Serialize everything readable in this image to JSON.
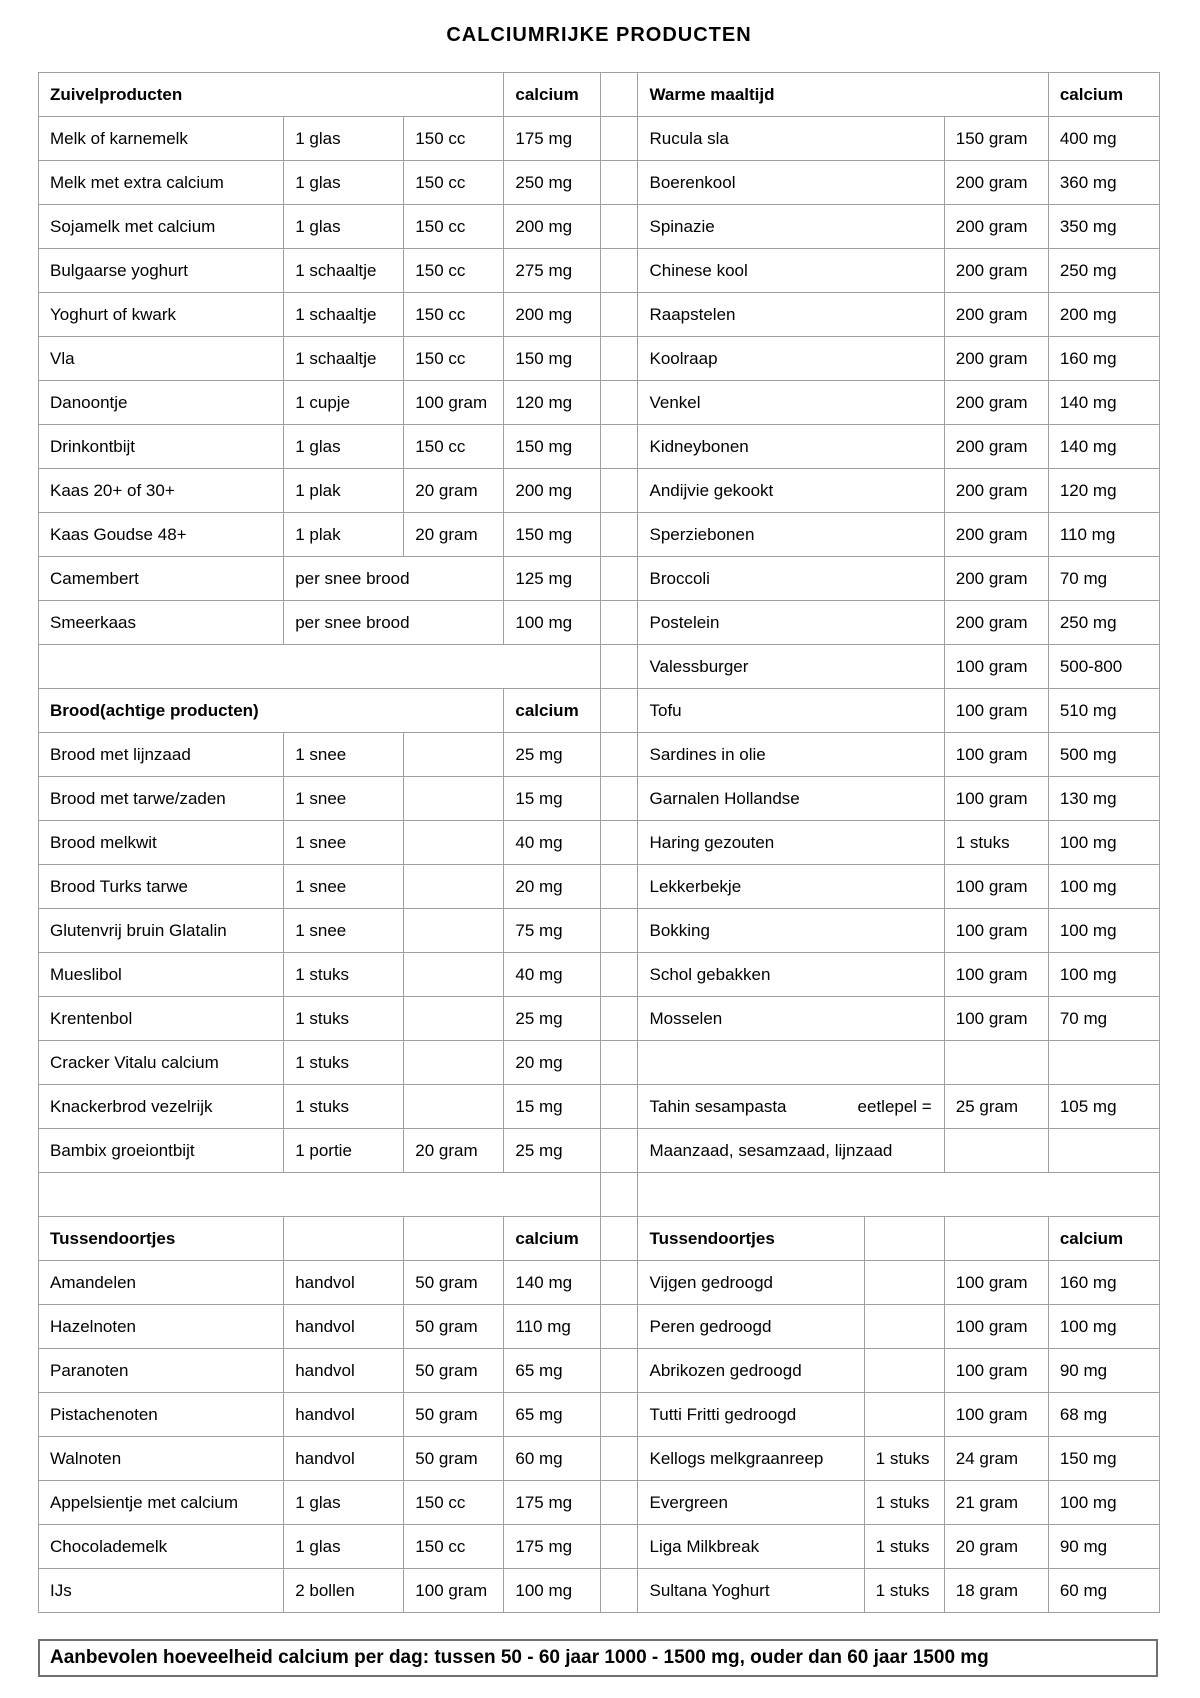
{
  "title": "CALCIUMRIJKE PRODUCTEN",
  "banner": "Aanbevolen hoeveelheid calcium per dag: tussen 50 - 60 jaar 1000 - 1500 mg, ouder dan 60 jaar 1500 mg",
  "table": {
    "rows": [
      [
        {
          "t": "Zuivelproducten",
          "b": 1,
          "s": 3
        },
        {
          "t": "calcium",
          "b": 1
        },
        {
          "sp": 1
        },
        {
          "t": "Warme maaltijd",
          "b": 1,
          "s": 3
        },
        {
          "t": "calcium",
          "b": 1
        }
      ],
      [
        {
          "t": "Melk of karnemelk"
        },
        {
          "t": "1 glas"
        },
        {
          "t": "150 cc"
        },
        {
          "t": "175 mg"
        },
        {
          "sp": 1
        },
        {
          "t": "Rucula sla",
          "s": 2
        },
        {
          "t": "150 gram"
        },
        {
          "t": "400 mg"
        }
      ],
      [
        {
          "t": "Melk met extra calcium"
        },
        {
          "t": "1 glas"
        },
        {
          "t": "150 cc"
        },
        {
          "t": "250 mg"
        },
        {
          "sp": 1
        },
        {
          "t": "Boerenkool",
          "s": 2
        },
        {
          "t": "200 gram"
        },
        {
          "t": "360 mg"
        }
      ],
      [
        {
          "t": "Sojamelk met calcium"
        },
        {
          "t": "1 glas"
        },
        {
          "t": "150 cc"
        },
        {
          "t": "200 mg"
        },
        {
          "sp": 1
        },
        {
          "t": "Spinazie",
          "s": 2
        },
        {
          "t": "200 gram"
        },
        {
          "t": "350 mg"
        }
      ],
      [
        {
          "t": "Bulgaarse yoghurt"
        },
        {
          "t": "1 schaaltje"
        },
        {
          "t": "150 cc"
        },
        {
          "t": "275 mg"
        },
        {
          "sp": 1
        },
        {
          "t": "Chinese kool",
          "s": 2
        },
        {
          "t": "200 gram"
        },
        {
          "t": "250 mg"
        }
      ],
      [
        {
          "t": "Yoghurt of kwark"
        },
        {
          "t": "1 schaaltje"
        },
        {
          "t": "150 cc"
        },
        {
          "t": "200 mg"
        },
        {
          "sp": 1
        },
        {
          "t": "Raapstelen",
          "s": 2
        },
        {
          "t": "200 gram"
        },
        {
          "t": "200 mg"
        }
      ],
      [
        {
          "t": "Vla"
        },
        {
          "t": "1 schaaltje"
        },
        {
          "t": "150 cc"
        },
        {
          "t": "150 mg"
        },
        {
          "sp": 1
        },
        {
          "t": "Koolraap",
          "s": 2
        },
        {
          "t": "200 gram"
        },
        {
          "t": "160 mg"
        }
      ],
      [
        {
          "t": "Danoontje"
        },
        {
          "t": "1 cupje"
        },
        {
          "t": "100 gram"
        },
        {
          "t": "120 mg"
        },
        {
          "sp": 1
        },
        {
          "t": "Venkel",
          "s": 2
        },
        {
          "t": "200 gram"
        },
        {
          "t": "140 mg"
        }
      ],
      [
        {
          "t": "Drinkontbijt"
        },
        {
          "t": "1 glas"
        },
        {
          "t": "150 cc"
        },
        {
          "t": "150 mg"
        },
        {
          "sp": 1
        },
        {
          "t": "Kidneybonen",
          "s": 2
        },
        {
          "t": "200 gram"
        },
        {
          "t": "140 mg"
        }
      ],
      [
        {
          "t": "Kaas 20+ of 30+"
        },
        {
          "t": "1 plak"
        },
        {
          "t": "20 gram"
        },
        {
          "t": "200 mg"
        },
        {
          "sp": 1
        },
        {
          "t": "Andijvie gekookt",
          "s": 2
        },
        {
          "t": "200 gram"
        },
        {
          "t": "120 mg"
        }
      ],
      [
        {
          "t": "Kaas Goudse 48+"
        },
        {
          "t": "1 plak"
        },
        {
          "t": "20 gram"
        },
        {
          "t": "150 mg"
        },
        {
          "sp": 1
        },
        {
          "t": "Sperziebonen",
          "s": 2
        },
        {
          "t": "200 gram"
        },
        {
          "t": "110 mg"
        }
      ],
      [
        {
          "t": "Camembert"
        },
        {
          "t": "per snee brood",
          "s": 2
        },
        {
          "t": "125 mg"
        },
        {
          "sp": 1
        },
        {
          "t": "Broccoli",
          "s": 2
        },
        {
          "t": "200 gram"
        },
        {
          "t": "70 mg"
        }
      ],
      [
        {
          "t": "Smeerkaas"
        },
        {
          "t": "per snee brood",
          "s": 2
        },
        {
          "t": "100 mg"
        },
        {
          "sp": 1
        },
        {
          "t": "Postelein",
          "s": 2
        },
        {
          "t": "200 gram"
        },
        {
          "t": "250 mg"
        }
      ],
      [
        {
          "gap": 1,
          "s": 4
        },
        {
          "sp": 1
        },
        {
          "t": "Valessburger",
          "s": 2
        },
        {
          "t": "100 gram"
        },
        {
          "t": "500-800"
        }
      ],
      [
        {
          "t": "Brood(achtige producten)",
          "b": 1,
          "s": 3
        },
        {
          "t": "calcium",
          "b": 1
        },
        {
          "sp": 1
        },
        {
          "t": "Tofu",
          "s": 2
        },
        {
          "t": "100 gram"
        },
        {
          "t": "510 mg"
        }
      ],
      [
        {
          "t": "Brood met lijnzaad"
        },
        {
          "t": "1 snee"
        },
        {
          "t": ""
        },
        {
          "t": "25 mg"
        },
        {
          "sp": 1
        },
        {
          "t": "Sardines in olie",
          "s": 2
        },
        {
          "t": "100 gram"
        },
        {
          "t": "500 mg"
        }
      ],
      [
        {
          "t": "Brood met tarwe/zaden"
        },
        {
          "t": "1 snee"
        },
        {
          "t": ""
        },
        {
          "t": "15 mg"
        },
        {
          "sp": 1
        },
        {
          "t": "Garnalen Hollandse",
          "s": 2
        },
        {
          "t": "100 gram"
        },
        {
          "t": "130 mg"
        }
      ],
      [
        {
          "t": "Brood melkwit"
        },
        {
          "t": "1 snee"
        },
        {
          "t": ""
        },
        {
          "t": "40 mg"
        },
        {
          "sp": 1
        },
        {
          "t": "Haring gezouten",
          "s": 2
        },
        {
          "t": "1 stuks"
        },
        {
          "t": "100 mg"
        }
      ],
      [
        {
          "t": "Brood Turks tarwe"
        },
        {
          "t": "1 snee"
        },
        {
          "t": ""
        },
        {
          "t": "20 mg"
        },
        {
          "sp": 1
        },
        {
          "t": "Lekkerbekje",
          "s": 2
        },
        {
          "t": "100 gram"
        },
        {
          "t": "100 mg"
        }
      ],
      [
        {
          "t": "Glutenvrij bruin Glatalin"
        },
        {
          "t": "1 snee"
        },
        {
          "t": ""
        },
        {
          "t": "75 mg"
        },
        {
          "sp": 1
        },
        {
          "t": "Bokking",
          "s": 2
        },
        {
          "t": "100 gram"
        },
        {
          "t": "100 mg"
        }
      ],
      [
        {
          "t": "Mueslibol"
        },
        {
          "t": "1 stuks"
        },
        {
          "t": ""
        },
        {
          "t": "40 mg"
        },
        {
          "sp": 1
        },
        {
          "t": "Schol gebakken",
          "s": 2
        },
        {
          "t": "100 gram"
        },
        {
          "t": "100 mg"
        }
      ],
      [
        {
          "t": "Krentenbol"
        },
        {
          "t": "1 stuks"
        },
        {
          "t": ""
        },
        {
          "t": "25 mg"
        },
        {
          "sp": 1
        },
        {
          "t": "Mosselen",
          "s": 2
        },
        {
          "t": "100 gram"
        },
        {
          "t": "70 mg"
        }
      ],
      [
        {
          "t": "Cracker Vitalu calcium"
        },
        {
          "t": "1 stuks"
        },
        {
          "t": ""
        },
        {
          "t": "20 mg"
        },
        {
          "sp": 1
        },
        {
          "t": "",
          "s": 2
        },
        {
          "t": ""
        },
        {
          "t": ""
        }
      ],
      [
        {
          "t": "Knackerbrod vezelrijk"
        },
        {
          "t": "1 stuks"
        },
        {
          "t": ""
        },
        {
          "t": "15 mg"
        },
        {
          "sp": 1
        },
        {
          "t": "Tahin sesampasta",
          "t2": "eetlepel =",
          "s": 2
        },
        {
          "t": "25 gram"
        },
        {
          "t": "105 mg"
        }
      ],
      [
        {
          "t": "Bambix groeiontbijt"
        },
        {
          "t": "1 portie"
        },
        {
          "t": "20 gram"
        },
        {
          "t": "25 mg"
        },
        {
          "sp": 1
        },
        {
          "t": "Maanzaad, sesamzaad, lijnzaad",
          "s": 2
        },
        {
          "t": ""
        },
        {
          "t": ""
        }
      ],
      [
        {
          "gap": 1,
          "s": 4
        },
        {
          "sp": 1,
          "gap": 1
        },
        {
          "gap": 1,
          "s": 4
        }
      ],
      [
        {
          "t": "Tussendoortjes",
          "b": 1
        },
        {
          "t": ""
        },
        {
          "t": ""
        },
        {
          "t": "calcium",
          "b": 1
        },
        {
          "sp": 1
        },
        {
          "t": "Tussendoortjes",
          "b": 1
        },
        {
          "t": ""
        },
        {
          "t": ""
        },
        {
          "t": "calcium",
          "b": 1
        }
      ],
      [
        {
          "t": "Amandelen"
        },
        {
          "t": "handvol"
        },
        {
          "t": "50 gram"
        },
        {
          "t": "140 mg"
        },
        {
          "sp": 1
        },
        {
          "t": "Vijgen gedroogd"
        },
        {
          "t": ""
        },
        {
          "t": "100 gram"
        },
        {
          "t": "160 mg"
        }
      ],
      [
        {
          "t": "Hazelnoten"
        },
        {
          "t": "handvol"
        },
        {
          "t": "50 gram"
        },
        {
          "t": "110 mg"
        },
        {
          "sp": 1
        },
        {
          "t": "Peren gedroogd"
        },
        {
          "t": ""
        },
        {
          "t": "100 gram"
        },
        {
          "t": "100 mg"
        }
      ],
      [
        {
          "t": "Paranoten"
        },
        {
          "t": "handvol"
        },
        {
          "t": "50 gram"
        },
        {
          "t": "65 mg"
        },
        {
          "sp": 1
        },
        {
          "t": "Abrikozen gedroogd"
        },
        {
          "t": ""
        },
        {
          "t": "100 gram"
        },
        {
          "t": "90 mg"
        }
      ],
      [
        {
          "t": "Pistachenoten"
        },
        {
          "t": "handvol"
        },
        {
          "t": "50 gram"
        },
        {
          "t": "65 mg"
        },
        {
          "sp": 1
        },
        {
          "t": "Tutti Fritti gedroogd"
        },
        {
          "t": ""
        },
        {
          "t": "100 gram"
        },
        {
          "t": "68 mg"
        }
      ],
      [
        {
          "t": "Walnoten"
        },
        {
          "t": "handvol"
        },
        {
          "t": "50 gram"
        },
        {
          "t": "60 mg"
        },
        {
          "sp": 1
        },
        {
          "t": "Kellogs melkgraanreep"
        },
        {
          "t": "1 stuks"
        },
        {
          "t": "24 gram"
        },
        {
          "t": "150 mg"
        }
      ],
      [
        {
          "t": "Appelsientje met calcium"
        },
        {
          "t": "1 glas"
        },
        {
          "t": "150 cc"
        },
        {
          "t": "175 mg"
        },
        {
          "sp": 1
        },
        {
          "t": "Evergreen"
        },
        {
          "t": "1 stuks"
        },
        {
          "t": "21 gram"
        },
        {
          "t": "100 mg"
        }
      ],
      [
        {
          "t": "Chocolademelk"
        },
        {
          "t": "1 glas"
        },
        {
          "t": "150 cc"
        },
        {
          "t": "175 mg"
        },
        {
          "sp": 1
        },
        {
          "t": "Liga Milkbreak"
        },
        {
          "t": "1 stuks"
        },
        {
          "t": "20 gram"
        },
        {
          "t": "90 mg"
        }
      ],
      [
        {
          "t": "IJs"
        },
        {
          "t": "2 bollen"
        },
        {
          "t": "100 gram"
        },
        {
          "t": "100 mg"
        },
        {
          "sp": 1
        },
        {
          "t": "Sultana Yoghurt"
        },
        {
          "t": "1 stuks"
        },
        {
          "t": "18 gram"
        },
        {
          "t": "60 mg"
        }
      ]
    ]
  }
}
